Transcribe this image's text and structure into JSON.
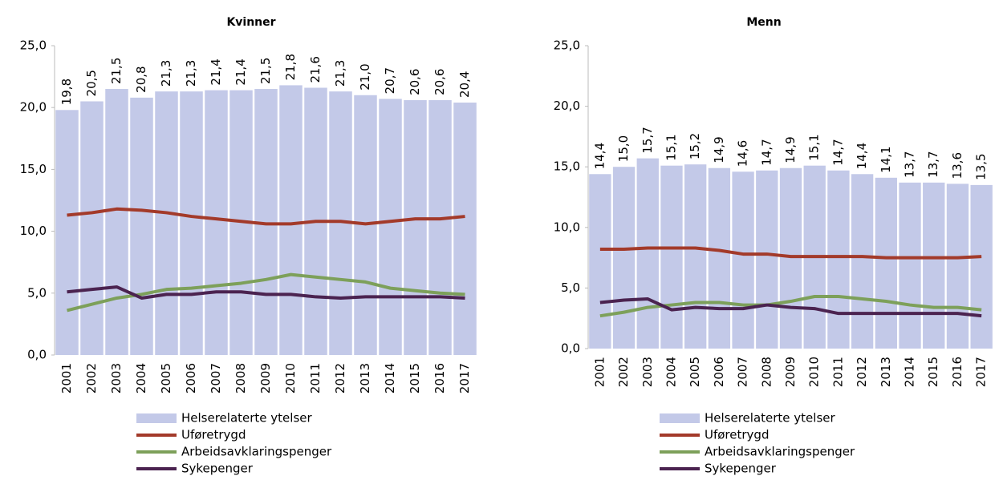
{
  "chart_data": [
    {
      "type": "bar",
      "title": "Kvinner",
      "categories": [
        "2001",
        "2002",
        "2003",
        "2004",
        "2005",
        "2006",
        "2007",
        "2008",
        "2009",
        "2010",
        "2011",
        "2012",
        "2013",
        "2014",
        "2015",
        "2016",
        "2017"
      ],
      "ylim": [
        0,
        25
      ],
      "yticks": [
        {
          "value": 0,
          "label": "0,0"
        },
        {
          "value": 5,
          "label": "5,0"
        },
        {
          "value": 10,
          "label": "10,0"
        },
        {
          "value": 15,
          "label": "15,0"
        },
        {
          "value": 20,
          "label": "20,0"
        },
        {
          "value": 25,
          "label": "25,0"
        }
      ],
      "grid": false,
      "series": [
        {
          "name": "Helserelaterte ytelser",
          "type": "bar",
          "color": "#c3c9e8",
          "values": [
            19.8,
            20.5,
            21.5,
            20.8,
            21.3,
            21.3,
            21.4,
            21.4,
            21.5,
            21.8,
            21.6,
            21.3,
            21.0,
            20.7,
            20.6,
            20.6,
            20.4
          ],
          "value_labels": [
            "19,8",
            "20,5",
            "21,5",
            "20,8",
            "21,3",
            "21,3",
            "21,4",
            "21,4",
            "21,5",
            "21,8",
            "21,6",
            "21,3",
            "21,0",
            "20,7",
            "20,6",
            "20,6",
            "20,4"
          ]
        },
        {
          "name": "Uføretrygd",
          "type": "line",
          "color": "#a33a2a",
          "values": [
            11.3,
            11.5,
            11.8,
            11.7,
            11.5,
            11.2,
            11.0,
            10.8,
            10.6,
            10.6,
            10.8,
            10.8,
            10.6,
            10.8,
            11.0,
            11.0,
            11.2
          ]
        },
        {
          "name": "Arbeidsavklaringspenger",
          "type": "line",
          "color": "#7da05a",
          "values": [
            3.6,
            4.1,
            4.6,
            4.9,
            5.3,
            5.4,
            5.6,
            5.8,
            6.1,
            6.5,
            6.3,
            6.1,
            5.9,
            5.4,
            5.2,
            5.0,
            4.9
          ]
        },
        {
          "name": "Sykepenger",
          "type": "line",
          "color": "#4b2350",
          "values": [
            5.1,
            5.3,
            5.5,
            4.6,
            4.9,
            4.9,
            5.1,
            5.1,
            4.9,
            4.9,
            4.7,
            4.6,
            4.7,
            4.7,
            4.7,
            4.7,
            4.6
          ]
        }
      ]
    },
    {
      "type": "bar",
      "title": "Menn",
      "categories": [
        "2001",
        "2002",
        "2003",
        "2004",
        "2005",
        "2006",
        "2007",
        "2008",
        "2009",
        "2010",
        "2011",
        "2012",
        "2013",
        "2014",
        "2015",
        "2016",
        "2017"
      ],
      "ylim": [
        0,
        25
      ],
      "yticks": [
        {
          "value": 0,
          "label": "0,0"
        },
        {
          "value": 5,
          "label": "5,0"
        },
        {
          "value": 10,
          "label": "10,0"
        },
        {
          "value": 15,
          "label": "15,0"
        },
        {
          "value": 20,
          "label": "20,0"
        },
        {
          "value": 25,
          "label": "25,0"
        }
      ],
      "grid": false,
      "series": [
        {
          "name": "Helserelaterte ytelser",
          "type": "bar",
          "color": "#c3c9e8",
          "values": [
            14.4,
            15.0,
            15.7,
            15.1,
            15.2,
            14.9,
            14.6,
            14.7,
            14.9,
            15.1,
            14.7,
            14.4,
            14.1,
            13.7,
            13.7,
            13.6,
            13.5
          ],
          "value_labels": [
            "14,4",
            "15,0",
            "15,7",
            "15,1",
            "15,2",
            "14,9",
            "14,6",
            "14,7",
            "14,9",
            "15,1",
            "14,7",
            "14,4",
            "14,1",
            "13,7",
            "13,7",
            "13,6",
            "13,5"
          ]
        },
        {
          "name": "Uføretrygd",
          "type": "line",
          "color": "#a33a2a",
          "values": [
            8.2,
            8.2,
            8.3,
            8.3,
            8.3,
            8.1,
            7.8,
            7.8,
            7.6,
            7.6,
            7.6,
            7.6,
            7.5,
            7.5,
            7.5,
            7.5,
            7.6
          ]
        },
        {
          "name": "Arbeidsavklaringspenger",
          "type": "line",
          "color": "#7da05a",
          "values": [
            2.7,
            3.0,
            3.4,
            3.6,
            3.8,
            3.8,
            3.6,
            3.6,
            3.9,
            4.3,
            4.3,
            4.1,
            3.9,
            3.6,
            3.4,
            3.4,
            3.2
          ]
        },
        {
          "name": "Sykepenger",
          "type": "line",
          "color": "#4b2350",
          "values": [
            3.8,
            4.0,
            4.1,
            3.2,
            3.4,
            3.3,
            3.3,
            3.6,
            3.4,
            3.3,
            2.9,
            2.9,
            2.9,
            2.9,
            2.9,
            2.9,
            2.7
          ]
        }
      ]
    }
  ]
}
